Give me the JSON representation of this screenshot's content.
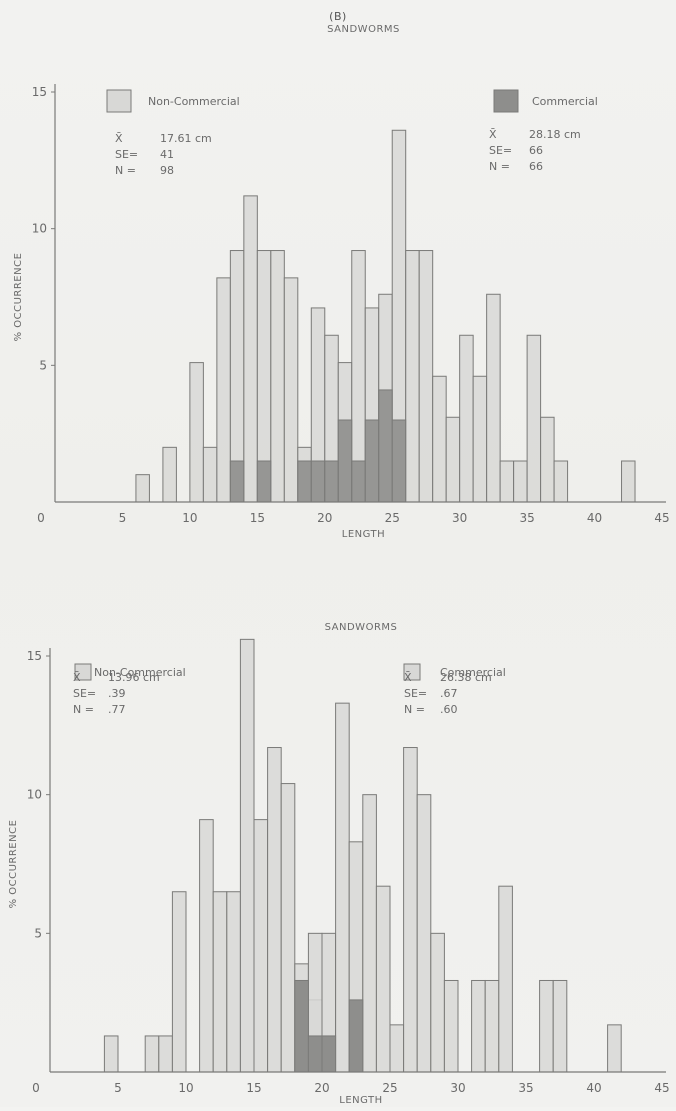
{
  "panel_label": "(B)",
  "colors": {
    "non_commercial_fill": "#d8d8d6",
    "commercial_fill": "#8e8e8c",
    "outline": "#7a7a78",
    "text": "#6a6a6a"
  },
  "chart_data": [
    {
      "type": "bar",
      "subtype": "histogram",
      "title": "SANDWORMS",
      "xlabel": "LENGTH",
      "ylabel": "% OCCURRENCE",
      "xlim": [
        0,
        45
      ],
      "ylim": [
        0,
        15
      ],
      "xticks": [
        0,
        5,
        10,
        15,
        20,
        25,
        30,
        35,
        40,
        45
      ],
      "yticks": [
        5,
        10,
        15
      ],
      "bin_width": 1,
      "legend_placement": "top",
      "series": [
        {
          "name": "Non-Commercial",
          "stats": [
            {
              "label": "X̄",
              "value": "17.61 cm"
            },
            {
              "label": "SE=",
              "value": "41"
            },
            {
              "label": "N =",
              "value": "98"
            }
          ],
          "bins": [
            {
              "x": 6,
              "y": 1
            },
            {
              "x": 8,
              "y": 2
            },
            {
              "x": 10,
              "y": 5.1
            },
            {
              "x": 11,
              "y": 2
            },
            {
              "x": 12,
              "y": 8.2
            },
            {
              "x": 13,
              "y": 9.2
            },
            {
              "x": 14,
              "y": 11.2
            },
            {
              "x": 15,
              "y": 9.2
            },
            {
              "x": 16,
              "y": 9.2
            },
            {
              "x": 17,
              "y": 8.2
            },
            {
              "x": 18,
              "y": 2
            },
            {
              "x": 19,
              "y": 7.1
            },
            {
              "x": 20,
              "y": 6.1
            },
            {
              "x": 21,
              "y": 5.1
            },
            {
              "x": 22,
              "y": 9.2
            },
            {
              "x": 23,
              "y": 7.1
            },
            {
              "x": 24,
              "y": 7.6
            },
            {
              "x": 25,
              "y": 13.6
            },
            {
              "x": 26,
              "y": 9.2
            },
            {
              "x": 27,
              "y": 9.2
            },
            {
              "x": 28,
              "y": 4.6
            },
            {
              "x": 29,
              "y": 3.1
            },
            {
              "x": 30,
              "y": 6.1
            },
            {
              "x": 31,
              "y": 4.6
            },
            {
              "x": 32,
              "y": 7.6
            },
            {
              "x": 33,
              "y": 1.5
            },
            {
              "x": 34,
              "y": 1.5
            },
            {
              "x": 35,
              "y": 6.1
            },
            {
              "x": 36,
              "y": 3.1
            },
            {
              "x": 37,
              "y": 1.5
            },
            {
              "x": 42,
              "y": 1.5
            }
          ]
        },
        {
          "name": "Commercial",
          "stats": [
            {
              "label": "X̄",
              "value": "28.18 cm"
            },
            {
              "label": "SE=",
              "value": "66"
            },
            {
              "label": "N =",
              "value": "66"
            }
          ],
          "bins": [
            {
              "x": 13,
              "y": 1.5
            },
            {
              "x": 15,
              "y": 1.5
            },
            {
              "x": 18,
              "y": 1.5
            },
            {
              "x": 19,
              "y": 1.5
            },
            {
              "x": 20,
              "y": 1.5
            },
            {
              "x": 21,
              "y": 3
            },
            {
              "x": 22,
              "y": 1.5
            },
            {
              "x": 23,
              "y": 3
            },
            {
              "x": 24,
              "y": 4.1
            },
            {
              "x": 25,
              "y": 3
            }
          ]
        }
      ]
    },
    {
      "type": "bar",
      "subtype": "histogram",
      "title": "SANDWORMS",
      "xlabel": "LENGTH",
      "ylabel": "% OCCURRENCE",
      "xlim": [
        0,
        45
      ],
      "ylim": [
        0,
        15
      ],
      "xticks": [
        0,
        5,
        10,
        15,
        20,
        25,
        30,
        35,
        40,
        45
      ],
      "yticks": [
        5,
        10,
        15
      ],
      "bin_width": 1,
      "legend_placement": "top",
      "series": [
        {
          "name": "Non-Commercial",
          "stats": [
            {
              "label": "X̄",
              "value": "13.96 cm"
            },
            {
              "label": "SE=",
              "value": ".39"
            },
            {
              "label": "N =",
              "value": ".77"
            }
          ],
          "bins": [
            {
              "x": 4,
              "y": 1.3
            },
            {
              "x": 7,
              "y": 1.3
            },
            {
              "x": 8,
              "y": 1.3
            },
            {
              "x": 9,
              "y": 6.5
            },
            {
              "x": 11,
              "y": 9.1
            },
            {
              "x": 12,
              "y": 6.5
            },
            {
              "x": 13,
              "y": 6.5
            },
            {
              "x": 14,
              "y": 15.6
            },
            {
              "x": 15,
              "y": 9.1
            },
            {
              "x": 16,
              "y": 11.7
            },
            {
              "x": 17,
              "y": 10.4
            },
            {
              "x": 18,
              "y": 3.9
            },
            {
              "x": 19,
              "y": 2.6
            },
            {
              "x": 20,
              "y": 1.3
            }
          ]
        },
        {
          "name": "Commercial",
          "stats": [
            {
              "label": "X̄",
              "value": "26.38 cm"
            },
            {
              "label": "SE=",
              "value": ".67"
            },
            {
              "label": "N =",
              "value": ".60"
            }
          ],
          "bins": [
            {
              "x": 19,
              "y": 5.0
            },
            {
              "x": 20,
              "y": 5.0
            },
            {
              "x": 21,
              "y": 13.3
            },
            {
              "x": 22,
              "y": 8.3
            },
            {
              "x": 23,
              "y": 10.0
            },
            {
              "x": 24,
              "y": 6.7
            },
            {
              "x": 25,
              "y": 1.7
            },
            {
              "x": 26,
              "y": 11.7
            },
            {
              "x": 27,
              "y": 10.0
            },
            {
              "x": 28,
              "y": 5.0
            },
            {
              "x": 29,
              "y": 3.3
            },
            {
              "x": 31,
              "y": 3.3
            },
            {
              "x": 32,
              "y": 3.3
            },
            {
              "x": 33,
              "y": 6.7
            },
            {
              "x": 36,
              "y": 3.3
            },
            {
              "x": 37,
              "y": 3.3
            },
            {
              "x": 41,
              "y": 1.7
            }
          ]
        }
      ],
      "overlap_bins": [
        {
          "x": 18,
          "y": 3.3
        },
        {
          "x": 19,
          "y": 1.3
        },
        {
          "x": 20,
          "y": 1.3
        },
        {
          "x": 22,
          "y": 2.6
        }
      ]
    }
  ]
}
